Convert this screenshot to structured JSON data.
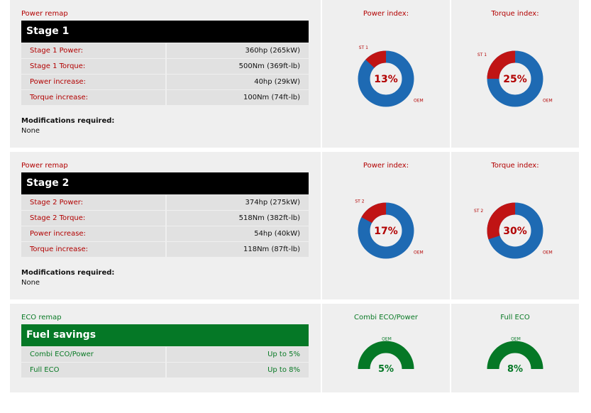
{
  "colors": {
    "red": "#c01414",
    "blue": "#1e6ab3",
    "green": "#057826",
    "dark_red": "#b20000"
  },
  "stage1": {
    "section_label": "Power remap",
    "title": "Stage 1",
    "rows": [
      {
        "label": "Stage 1 Power:",
        "value": "360hp (265kW)"
      },
      {
        "label": "Stage 1 Torque:",
        "value": "500Nm (369ft-lb)"
      },
      {
        "label": "Power increase:",
        "value": "40hp (29kW)"
      },
      {
        "label": "Torque increase:",
        "value": "100Nm (74ft-lb)"
      }
    ],
    "mods_title": "Modifications required:",
    "mods_value": "None",
    "power_chart": {
      "title": "Power index:",
      "percent": 13,
      "percent_label": "13%",
      "stage_label": "ST 1",
      "oem_label": "OEM"
    },
    "torque_chart": {
      "title": "Torque index:",
      "percent": 25,
      "percent_label": "25%",
      "stage_label": "ST 1",
      "oem_label": "OEM"
    }
  },
  "stage2": {
    "section_label": "Power remap",
    "title": "Stage 2",
    "rows": [
      {
        "label": "Stage 2 Power:",
        "value": "374hp (275kW)"
      },
      {
        "label": "Stage 2 Torque:",
        "value": "518Nm (382ft-lb)"
      },
      {
        "label": "Power increase:",
        "value": "54hp (40kW)"
      },
      {
        "label": "Torque increase:",
        "value": "118Nm (87ft-lb)"
      }
    ],
    "mods_title": "Modifications required:",
    "mods_value": "None",
    "power_chart": {
      "title": "Power index:",
      "percent": 17,
      "percent_label": "17%",
      "stage_label": "ST 2",
      "oem_label": "OEM"
    },
    "torque_chart": {
      "title": "Torque index:",
      "percent": 30,
      "percent_label": "30%",
      "stage_label": "ST 2",
      "oem_label": "OEM"
    }
  },
  "eco": {
    "section_label": "ECO remap",
    "title": "Fuel savings",
    "rows": [
      {
        "label": "Combi ECO/Power",
        "value": "Up to 5%"
      },
      {
        "label": "Full ECO",
        "value": "Up to 8%"
      }
    ],
    "combi_chart": {
      "title": "Combi ECO/Power",
      "percent": 5,
      "percent_label": "5%",
      "oem_label": "OEM"
    },
    "full_chart": {
      "title": "Full ECO",
      "percent": 8,
      "percent_label": "8%",
      "oem_label": "OEM"
    }
  }
}
